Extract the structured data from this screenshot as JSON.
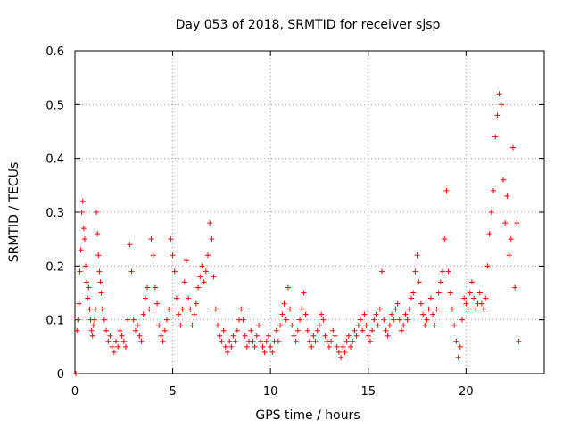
{
  "chart_data": {
    "type": "scatter",
    "title": "Day 053 of 2018, SRMTID for receiver sjsp",
    "xlabel": "GPS time / hours",
    "ylabel": "SRMTID / TECUs",
    "xlim": [
      0,
      24
    ],
    "ylim": [
      0,
      0.6
    ],
    "xticks": [
      0,
      5,
      10,
      15,
      20
    ],
    "xtick_labels": [
      "0",
      "5",
      "10",
      "15",
      "20"
    ],
    "yticks": [
      0,
      0.1,
      0.2,
      0.3,
      0.4,
      0.5,
      0.6
    ],
    "ytick_labels": [
      "0",
      "0.1",
      "0.2",
      "0.3",
      "0.4",
      "0.5",
      "0.6"
    ],
    "grid": true,
    "marker": "+",
    "color": "#ff0000",
    "series": [
      {
        "name": "SRMTID",
        "points": [
          [
            0.05,
            0.0
          ],
          [
            0.1,
            0.08
          ],
          [
            0.15,
            0.1
          ],
          [
            0.2,
            0.13
          ],
          [
            0.25,
            0.19
          ],
          [
            0.3,
            0.23
          ],
          [
            0.35,
            0.3
          ],
          [
            0.4,
            0.32
          ],
          [
            0.45,
            0.27
          ],
          [
            0.5,
            0.25
          ],
          [
            0.55,
            0.2
          ],
          [
            0.6,
            0.17
          ],
          [
            0.65,
            0.14
          ],
          [
            0.7,
            0.16
          ],
          [
            0.75,
            0.12
          ],
          [
            0.8,
            0.1
          ],
          [
            0.85,
            0.08
          ],
          [
            0.9,
            0.07
          ],
          [
            0.95,
            0.09
          ],
          [
            1.0,
            0.1
          ],
          [
            1.05,
            0.12
          ],
          [
            1.1,
            0.3
          ],
          [
            1.15,
            0.26
          ],
          [
            1.2,
            0.22
          ],
          [
            1.25,
            0.19
          ],
          [
            1.3,
            0.17
          ],
          [
            1.35,
            0.15
          ],
          [
            1.4,
            0.12
          ],
          [
            1.5,
            0.1
          ],
          [
            1.6,
            0.08
          ],
          [
            1.7,
            0.06
          ],
          [
            1.8,
            0.07
          ],
          [
            1.9,
            0.05
          ],
          [
            2.0,
            0.04
          ],
          [
            2.1,
            0.06
          ],
          [
            2.2,
            0.05
          ],
          [
            2.3,
            0.08
          ],
          [
            2.4,
            0.07
          ],
          [
            2.5,
            0.06
          ],
          [
            2.6,
            0.05
          ],
          [
            2.7,
            0.1
          ],
          [
            2.8,
            0.24
          ],
          [
            2.9,
            0.19
          ],
          [
            3.0,
            0.1
          ],
          [
            3.1,
            0.08
          ],
          [
            3.2,
            0.09
          ],
          [
            3.3,
            0.07
          ],
          [
            3.4,
            0.06
          ],
          [
            3.5,
            0.11
          ],
          [
            3.6,
            0.14
          ],
          [
            3.7,
            0.16
          ],
          [
            3.8,
            0.12
          ],
          [
            3.9,
            0.25
          ],
          [
            4.0,
            0.22
          ],
          [
            4.1,
            0.16
          ],
          [
            4.2,
            0.13
          ],
          [
            4.3,
            0.09
          ],
          [
            4.4,
            0.07
          ],
          [
            4.5,
            0.06
          ],
          [
            4.6,
            0.08
          ],
          [
            4.7,
            0.1
          ],
          [
            4.8,
            0.12
          ],
          [
            4.9,
            0.25
          ],
          [
            5.0,
            0.22
          ],
          [
            5.1,
            0.19
          ],
          [
            5.2,
            0.14
          ],
          [
            5.3,
            0.11
          ],
          [
            5.4,
            0.09
          ],
          [
            5.5,
            0.12
          ],
          [
            5.6,
            0.17
          ],
          [
            5.7,
            0.21
          ],
          [
            5.8,
            0.14
          ],
          [
            5.9,
            0.12
          ],
          [
            6.0,
            0.09
          ],
          [
            6.1,
            0.11
          ],
          [
            6.2,
            0.13
          ],
          [
            6.3,
            0.16
          ],
          [
            6.4,
            0.18
          ],
          [
            6.5,
            0.2
          ],
          [
            6.6,
            0.17
          ],
          [
            6.7,
            0.19
          ],
          [
            6.8,
            0.22
          ],
          [
            6.9,
            0.28
          ],
          [
            7.0,
            0.25
          ],
          [
            7.1,
            0.18
          ],
          [
            7.2,
            0.12
          ],
          [
            7.3,
            0.09
          ],
          [
            7.4,
            0.07
          ],
          [
            7.5,
            0.06
          ],
          [
            7.6,
            0.08
          ],
          [
            7.7,
            0.05
          ],
          [
            7.8,
            0.04
          ],
          [
            7.9,
            0.06
          ],
          [
            8.0,
            0.05
          ],
          [
            8.1,
            0.07
          ],
          [
            8.2,
            0.06
          ],
          [
            8.3,
            0.08
          ],
          [
            8.4,
            0.1
          ],
          [
            8.5,
            0.12
          ],
          [
            8.6,
            0.1
          ],
          [
            8.7,
            0.07
          ],
          [
            8.8,
            0.05
          ],
          [
            8.9,
            0.06
          ],
          [
            9.0,
            0.08
          ],
          [
            9.1,
            0.06
          ],
          [
            9.2,
            0.05
          ],
          [
            9.3,
            0.07
          ],
          [
            9.4,
            0.09
          ],
          [
            9.5,
            0.06
          ],
          [
            9.6,
            0.05
          ],
          [
            9.7,
            0.04
          ],
          [
            9.8,
            0.06
          ],
          [
            9.9,
            0.07
          ],
          [
            10.0,
            0.05
          ],
          [
            10.1,
            0.04
          ],
          [
            10.2,
            0.06
          ],
          [
            10.3,
            0.08
          ],
          [
            10.4,
            0.06
          ],
          [
            10.5,
            0.09
          ],
          [
            10.6,
            0.11
          ],
          [
            10.7,
            0.13
          ],
          [
            10.8,
            0.1
          ],
          [
            10.9,
            0.16
          ],
          [
            11.0,
            0.12
          ],
          [
            11.1,
            0.09
          ],
          [
            11.2,
            0.07
          ],
          [
            11.3,
            0.06
          ],
          [
            11.4,
            0.08
          ],
          [
            11.5,
            0.1
          ],
          [
            11.6,
            0.12
          ],
          [
            11.7,
            0.15
          ],
          [
            11.8,
            0.11
          ],
          [
            11.9,
            0.08
          ],
          [
            12.0,
            0.06
          ],
          [
            12.1,
            0.05
          ],
          [
            12.2,
            0.07
          ],
          [
            12.3,
            0.06
          ],
          [
            12.4,
            0.08
          ],
          [
            12.5,
            0.09
          ],
          [
            12.6,
            0.11
          ],
          [
            12.7,
            0.1
          ],
          [
            12.8,
            0.07
          ],
          [
            12.9,
            0.06
          ],
          [
            13.0,
            0.05
          ],
          [
            13.1,
            0.06
          ],
          [
            13.2,
            0.08
          ],
          [
            13.3,
            0.07
          ],
          [
            13.4,
            0.05
          ],
          [
            13.5,
            0.04
          ],
          [
            13.6,
            0.03
          ],
          [
            13.7,
            0.05
          ],
          [
            13.8,
            0.04
          ],
          [
            13.9,
            0.06
          ],
          [
            14.0,
            0.07
          ],
          [
            14.1,
            0.05
          ],
          [
            14.2,
            0.06
          ],
          [
            14.3,
            0.08
          ],
          [
            14.4,
            0.07
          ],
          [
            14.5,
            0.09
          ],
          [
            14.6,
            0.1
          ],
          [
            14.7,
            0.08
          ],
          [
            14.8,
            0.11
          ],
          [
            14.9,
            0.09
          ],
          [
            15.0,
            0.07
          ],
          [
            15.1,
            0.06
          ],
          [
            15.2,
            0.08
          ],
          [
            15.3,
            0.1
          ],
          [
            15.4,
            0.11
          ],
          [
            15.5,
            0.09
          ],
          [
            15.6,
            0.12
          ],
          [
            15.7,
            0.19
          ],
          [
            15.8,
            0.1
          ],
          [
            15.9,
            0.08
          ],
          [
            16.0,
            0.07
          ],
          [
            16.1,
            0.09
          ],
          [
            16.2,
            0.11
          ],
          [
            16.3,
            0.1
          ],
          [
            16.4,
            0.12
          ],
          [
            16.5,
            0.13
          ],
          [
            16.6,
            0.1
          ],
          [
            16.7,
            0.08
          ],
          [
            16.8,
            0.09
          ],
          [
            16.9,
            0.11
          ],
          [
            17.0,
            0.1
          ],
          [
            17.1,
            0.12
          ],
          [
            17.2,
            0.14
          ],
          [
            17.3,
            0.15
          ],
          [
            17.4,
            0.19
          ],
          [
            17.5,
            0.22
          ],
          [
            17.6,
            0.17
          ],
          [
            17.7,
            0.13
          ],
          [
            17.8,
            0.11
          ],
          [
            17.9,
            0.09
          ],
          [
            18.0,
            0.1
          ],
          [
            18.1,
            0.12
          ],
          [
            18.2,
            0.14
          ],
          [
            18.3,
            0.11
          ],
          [
            18.4,
            0.09
          ],
          [
            18.5,
            0.12
          ],
          [
            18.6,
            0.15
          ],
          [
            18.7,
            0.17
          ],
          [
            18.8,
            0.19
          ],
          [
            18.9,
            0.25
          ],
          [
            19.0,
            0.34
          ],
          [
            19.1,
            0.19
          ],
          [
            19.2,
            0.15
          ],
          [
            19.3,
            0.12
          ],
          [
            19.4,
            0.09
          ],
          [
            19.5,
            0.06
          ],
          [
            19.6,
            0.03
          ],
          [
            19.7,
            0.05
          ],
          [
            19.8,
            0.1
          ],
          [
            19.9,
            0.14
          ],
          [
            20.0,
            0.13
          ],
          [
            20.1,
            0.12
          ],
          [
            20.2,
            0.15
          ],
          [
            20.3,
            0.17
          ],
          [
            20.4,
            0.14
          ],
          [
            20.5,
            0.12
          ],
          [
            20.6,
            0.13
          ],
          [
            20.7,
            0.15
          ],
          [
            20.8,
            0.13
          ],
          [
            20.9,
            0.12
          ],
          [
            21.0,
            0.14
          ],
          [
            21.1,
            0.2
          ],
          [
            21.2,
            0.26
          ],
          [
            21.3,
            0.3
          ],
          [
            21.4,
            0.34
          ],
          [
            21.5,
            0.44
          ],
          [
            21.6,
            0.48
          ],
          [
            21.7,
            0.52
          ],
          [
            21.8,
            0.5
          ],
          [
            21.9,
            0.36
          ],
          [
            22.0,
            0.28
          ],
          [
            22.1,
            0.33
          ],
          [
            22.2,
            0.22
          ],
          [
            22.3,
            0.25
          ],
          [
            22.4,
            0.42
          ],
          [
            22.5,
            0.16
          ],
          [
            22.6,
            0.28
          ],
          [
            22.7,
            0.06
          ]
        ]
      }
    ]
  }
}
